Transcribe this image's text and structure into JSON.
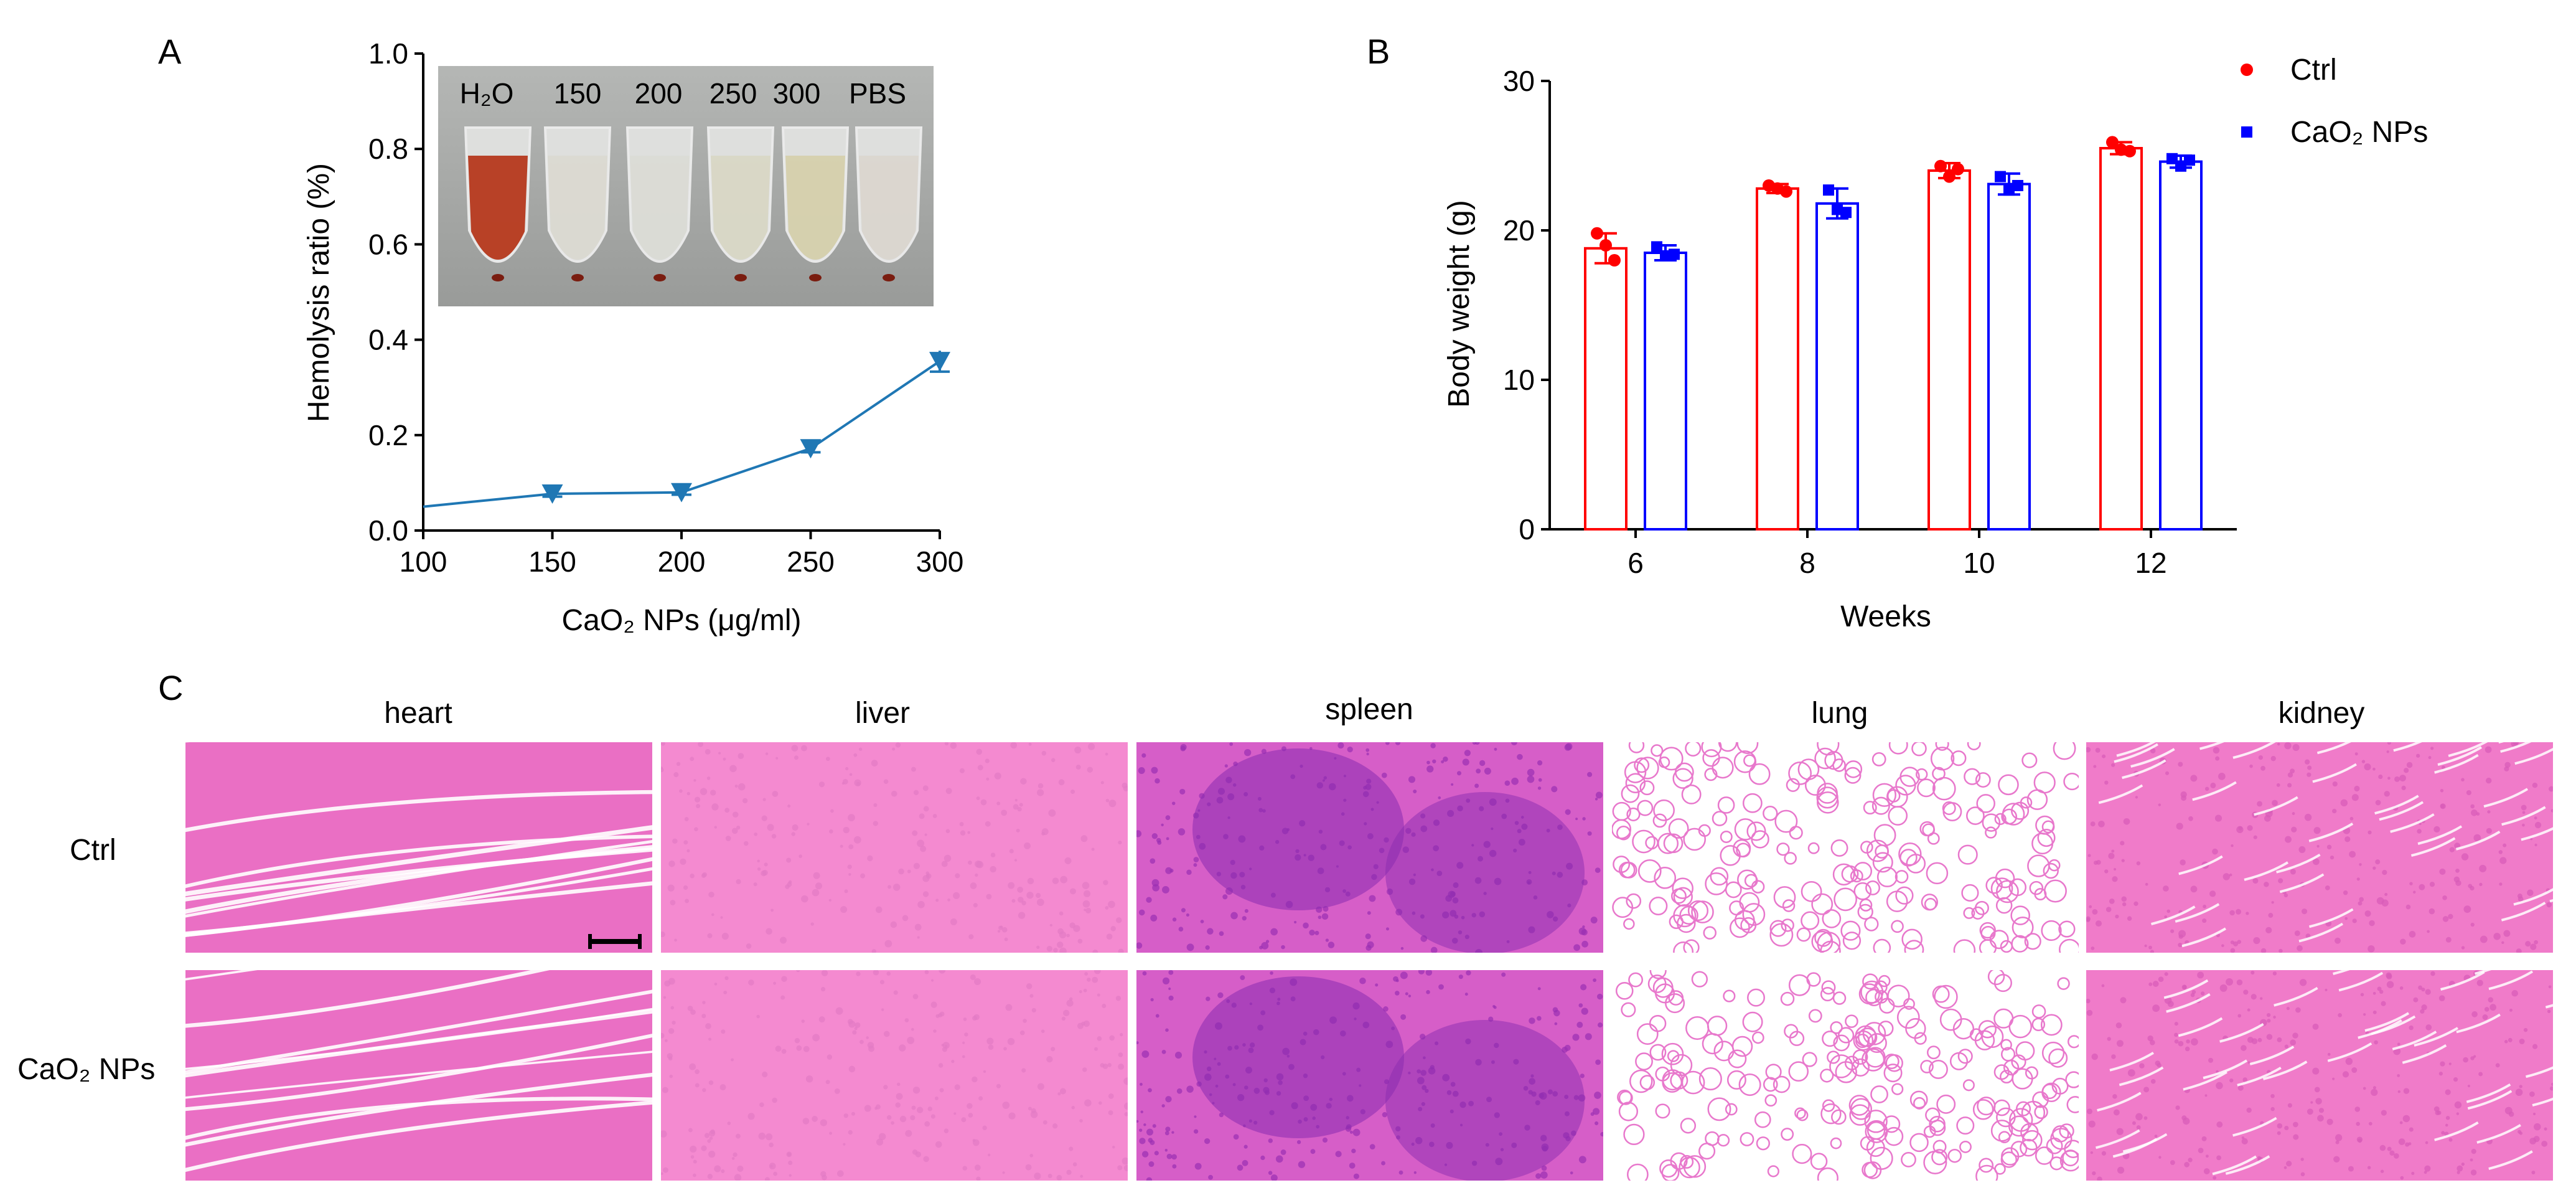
{
  "panels": {
    "a": "A",
    "b": "B",
    "c": "C"
  },
  "chart_data": [
    {
      "type": "line",
      "panel": "A",
      "xlabel": "CaO₂ NPs (μg/ml)",
      "ylabel": "Hemolysis ratio (%)",
      "xlim": [
        100,
        300
      ],
      "ylim": [
        0.0,
        1.0
      ],
      "xticks": [
        "100",
        "150",
        "200",
        "250",
        "300"
      ],
      "yticks": [
        "0.0",
        "0.2",
        "0.4",
        "0.6",
        "0.8",
        "1.0"
      ],
      "x": [
        100,
        150,
        200,
        250,
        300
      ],
      "y": [
        0.05,
        0.077,
        0.08,
        0.172,
        0.355
      ],
      "errors": [
        0,
        0.006,
        0.005,
        0.008,
        0.022
      ],
      "marked": [
        false,
        true,
        true,
        true,
        true
      ],
      "color": "#1f77b4",
      "inset_labels": [
        "H₂O",
        "150",
        "200",
        "250",
        "300",
        "PBS"
      ]
    },
    {
      "type": "bar",
      "panel": "B",
      "xlabel": "Weeks",
      "ylabel": "Body weight (g)",
      "categories": [
        "6",
        "8",
        "10",
        "12"
      ],
      "ylim": [
        0,
        30
      ],
      "yticks": [
        "0",
        "10",
        "20",
        "30"
      ],
      "legend_position": "top-right",
      "series": [
        {
          "name": "Ctrl",
          "color": "#ff0000",
          "values": [
            18.8,
            22.8,
            24.0,
            25.5
          ],
          "errors": [
            1.0,
            0.3,
            0.5,
            0.4
          ],
          "points": [
            [
              19.8,
              19.0,
              18.0
            ],
            [
              23.0,
              22.8,
              22.6
            ],
            [
              24.3,
              23.6,
              24.1
            ],
            [
              25.9,
              25.4,
              25.3
            ]
          ]
        },
        {
          "name": "CaO₂ NPs",
          "color": "#0000ff",
          "values": [
            18.5,
            21.8,
            23.1,
            24.6
          ],
          "errors": [
            0.5,
            1.0,
            0.7,
            0.4
          ],
          "points": [
            [
              18.9,
              18.3,
              18.4
            ],
            [
              22.7,
              21.4,
              21.2
            ],
            [
              23.6,
              22.7,
              23.0
            ],
            [
              24.8,
              24.3,
              24.7
            ]
          ]
        }
      ]
    }
  ],
  "histology": {
    "columns": [
      "heart",
      "liver",
      "spleen",
      "lung",
      "kidney"
    ],
    "rows": [
      "Ctrl",
      "CaO₂ NPs"
    ]
  }
}
